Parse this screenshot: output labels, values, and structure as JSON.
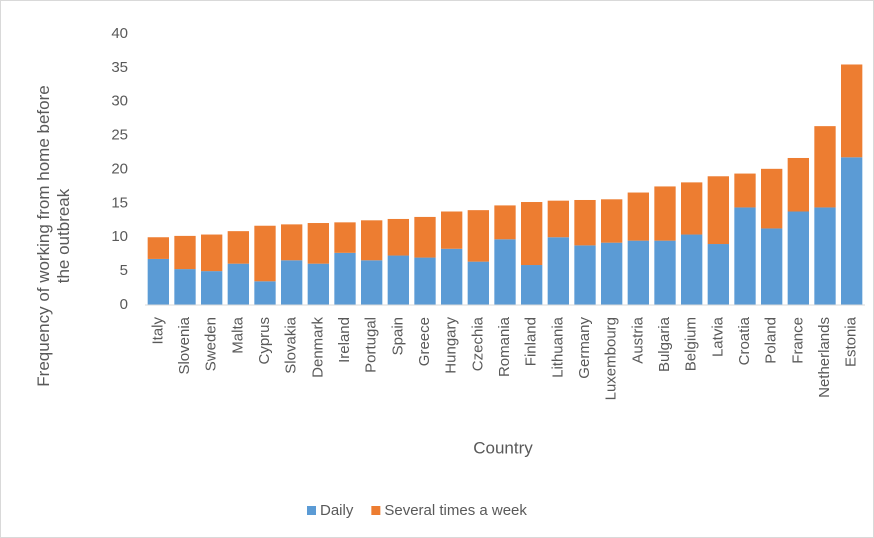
{
  "chart_data": {
    "type": "stacked_bar",
    "xlabel": "Country",
    "ylabel": "Frequency of working from home before the outbreak",
    "categories": [
      "Italy",
      "Slovenia",
      "Sweden",
      "Malta",
      "Cyprus",
      "Slovakia",
      "Denmark",
      "Ireland",
      "Portugal",
      "Spain",
      "Greece",
      "Hungary",
      "Czechia",
      "Romania",
      "Finland",
      "Lithuania",
      "Germany",
      "Luxembourg",
      "Austria",
      "Bulgaria",
      "Belgium",
      "Latvia",
      "Croatia",
      "Poland",
      "France",
      "Netherlands",
      "Estonia"
    ],
    "series": [
      {
        "name": "Daily",
        "color": "#5b9bd5",
        "values": [
          6.8,
          5.3,
          5.0,
          6.1,
          3.5,
          6.6,
          6.1,
          7.7,
          6.6,
          7.3,
          7.0,
          8.3,
          6.4,
          9.7,
          5.9,
          10.0,
          8.8,
          9.2,
          9.5,
          9.5,
          10.4,
          9.0,
          14.4,
          11.3,
          13.8,
          14.4,
          21.8
        ]
      },
      {
        "name": "Several times a week",
        "color": "#ed7d31",
        "values": [
          3.2,
          4.9,
          5.4,
          4.8,
          8.2,
          5.3,
          6.0,
          4.5,
          5.9,
          5.4,
          6.0,
          5.5,
          7.6,
          5.0,
          9.3,
          5.4,
          6.7,
          6.4,
          7.1,
          8.0,
          7.7,
          10.0,
          5.0,
          8.8,
          7.9,
          12.0,
          13.7
        ]
      }
    ],
    "ylim": [
      0,
      40
    ],
    "yticks": [
      0,
      5,
      10,
      15,
      20,
      25,
      30,
      35,
      40
    ],
    "grid": false
  }
}
